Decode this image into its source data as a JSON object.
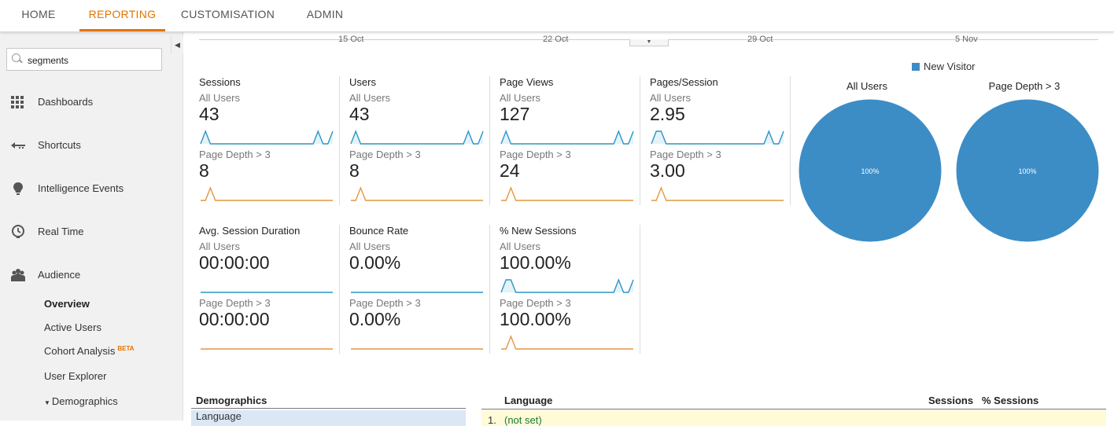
{
  "topnav": {
    "tabs": [
      {
        "label": "HOME"
      },
      {
        "label": "REPORTING"
      },
      {
        "label": "CUSTOMISATION"
      },
      {
        "label": "ADMIN"
      }
    ],
    "active_tab": "REPORTING"
  },
  "sidebar": {
    "search": {
      "value": "segments"
    },
    "items": [
      {
        "label": "Dashboards",
        "icon": "grid-icon"
      },
      {
        "label": "Shortcuts",
        "icon": "shortcut-arrow-icon"
      },
      {
        "label": "Intelligence Events",
        "icon": "lightbulb-icon"
      },
      {
        "label": "Real Time",
        "icon": "clock-icon"
      },
      {
        "label": "Audience",
        "icon": "people-icon"
      }
    ],
    "sub_items": {
      "overview": "Overview",
      "active_users": "Active Users",
      "cohort_analysis": "Cohort Analysis",
      "cohort_badge": "BETA",
      "user_explorer": "User Explorer",
      "demographics": "Demographics"
    }
  },
  "timeline": {
    "labels": [
      "15 Oct",
      "22 Oct",
      "29 Oct",
      "5 Nov"
    ]
  },
  "metrics": [
    {
      "name": "Sessions",
      "seg1": "All Users",
      "val1": "43",
      "seg2": "Page Depth > 3",
      "val2": "8",
      "spark1": [
        0,
        1,
        0,
        0,
        0,
        0,
        0,
        0,
        0,
        0,
        0,
        0,
        0,
        0,
        0,
        0,
        0,
        0,
        0,
        0,
        0,
        0,
        0,
        0,
        1,
        0,
        0,
        1
      ],
      "spark2": [
        0,
        0,
        1,
        0,
        0,
        0,
        0,
        0,
        0,
        0,
        0,
        0,
        0,
        0,
        0,
        0,
        0,
        0,
        0,
        0,
        0,
        0,
        0,
        0,
        0,
        0,
        0,
        0
      ]
    },
    {
      "name": "Users",
      "seg1": "All Users",
      "val1": "43",
      "seg2": "Page Depth > 3",
      "val2": "8",
      "spark1": [
        0,
        1,
        0,
        0,
        0,
        0,
        0,
        0,
        0,
        0,
        0,
        0,
        0,
        0,
        0,
        0,
        0,
        0,
        0,
        0,
        0,
        0,
        0,
        0,
        1,
        0,
        0,
        1
      ],
      "spark2": [
        0,
        0,
        1,
        0,
        0,
        0,
        0,
        0,
        0,
        0,
        0,
        0,
        0,
        0,
        0,
        0,
        0,
        0,
        0,
        0,
        0,
        0,
        0,
        0,
        0,
        0,
        0,
        0
      ]
    },
    {
      "name": "Page Views",
      "seg1": "All Users",
      "val1": "127",
      "seg2": "Page Depth > 3",
      "val2": "24",
      "spark1": [
        0,
        1,
        0,
        0,
        0,
        0,
        0,
        0,
        0,
        0,
        0,
        0,
        0,
        0,
        0,
        0,
        0,
        0,
        0,
        0,
        0,
        0,
        0,
        0,
        1,
        0,
        0,
        1
      ],
      "spark2": [
        0,
        0,
        1,
        0,
        0,
        0,
        0,
        0,
        0,
        0,
        0,
        0,
        0,
        0,
        0,
        0,
        0,
        0,
        0,
        0,
        0,
        0,
        0,
        0,
        0,
        0,
        0,
        0
      ]
    },
    {
      "name": "Pages/Session",
      "seg1": "All Users",
      "val1": "2.95",
      "seg2": "Page Depth > 3",
      "val2": "3.00",
      "spark1": [
        0,
        1,
        1,
        0,
        0,
        0,
        0,
        0,
        0,
        0,
        0,
        0,
        0,
        0,
        0,
        0,
        0,
        0,
        0,
        0,
        0,
        0,
        0,
        0,
        1,
        0,
        0,
        1
      ],
      "spark2": [
        0,
        0,
        1,
        0,
        0,
        0,
        0,
        0,
        0,
        0,
        0,
        0,
        0,
        0,
        0,
        0,
        0,
        0,
        0,
        0,
        0,
        0,
        0,
        0,
        0,
        0,
        0,
        0
      ]
    },
    {
      "name": "Avg. Session Duration",
      "seg1": "All Users",
      "val1": "00:00:00",
      "seg2": "Page Depth > 3",
      "val2": "00:00:00",
      "spark1": [
        0,
        0,
        0,
        0,
        0,
        0,
        0,
        0,
        0,
        0,
        0,
        0,
        0,
        0,
        0,
        0,
        0,
        0,
        0,
        0,
        0,
        0,
        0,
        0,
        0,
        0,
        0,
        0
      ],
      "spark2": [
        0,
        0,
        0,
        0,
        0,
        0,
        0,
        0,
        0,
        0,
        0,
        0,
        0,
        0,
        0,
        0,
        0,
        0,
        0,
        0,
        0,
        0,
        0,
        0,
        0,
        0,
        0,
        0
      ]
    },
    {
      "name": "Bounce Rate",
      "seg1": "All Users",
      "val1": "0.00%",
      "seg2": "Page Depth > 3",
      "val2": "0.00%",
      "spark1": [
        0,
        0,
        0,
        0,
        0,
        0,
        0,
        0,
        0,
        0,
        0,
        0,
        0,
        0,
        0,
        0,
        0,
        0,
        0,
        0,
        0,
        0,
        0,
        0,
        0,
        0,
        0,
        0
      ],
      "spark2": [
        0,
        0,
        0,
        0,
        0,
        0,
        0,
        0,
        0,
        0,
        0,
        0,
        0,
        0,
        0,
        0,
        0,
        0,
        0,
        0,
        0,
        0,
        0,
        0,
        0,
        0,
        0,
        0
      ]
    },
    {
      "name": "% New Sessions",
      "seg1": "All Users",
      "val1": "100.00%",
      "seg2": "Page Depth > 3",
      "val2": "100.00%",
      "spark1": [
        0,
        1,
        1,
        0,
        0,
        0,
        0,
        0,
        0,
        0,
        0,
        0,
        0,
        0,
        0,
        0,
        0,
        0,
        0,
        0,
        0,
        0,
        0,
        0,
        1,
        0,
        0,
        1
      ],
      "spark2": [
        0,
        0,
        1,
        0,
        0,
        0,
        0,
        0,
        0,
        0,
        0,
        0,
        0,
        0,
        0,
        0,
        0,
        0,
        0,
        0,
        0,
        0,
        0,
        0,
        0,
        0,
        0,
        0
      ]
    }
  ],
  "colors": {
    "series1": "#2a96c6",
    "series2": "#e3963e",
    "pie": "#3c8dc6",
    "accent": "#e37400"
  },
  "chart_data": {
    "type": "pie",
    "legend": [
      "New Visitor"
    ],
    "pies": [
      {
        "title": "All Users",
        "slices": [
          {
            "name": "New Visitor",
            "value": 100
          }
        ],
        "label": "100%"
      },
      {
        "title": "Page Depth > 3",
        "slices": [
          {
            "name": "New Visitor",
            "value": 100
          }
        ],
        "label": "100%"
      }
    ]
  },
  "bottom": {
    "demographics_header": "Demographics",
    "demographics_row": "Language",
    "language_header": "Language",
    "sessions_header": "Sessions",
    "pct_sessions_header": "% Sessions",
    "row_index": "1.",
    "row_value": "(not set)"
  }
}
